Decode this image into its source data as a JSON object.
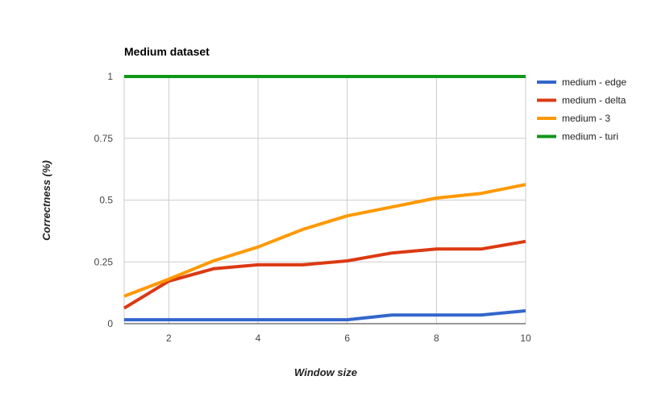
{
  "chart_data": {
    "type": "line",
    "title": "Medium dataset",
    "xlabel": "Window size",
    "ylabel": "Correctness (%)",
    "xlim": [
      1,
      10
    ],
    "ylim": [
      0,
      1
    ],
    "x_ticks": [
      2,
      4,
      6,
      8,
      10
    ],
    "y_ticks": [
      0,
      0.25,
      0.5,
      0.75,
      1
    ],
    "y_tick_labels": [
      "0",
      "0.25",
      "0.5",
      "0.75",
      "1"
    ],
    "grid": true,
    "legend_position": "right",
    "x": [
      1,
      2,
      3,
      4,
      5,
      6,
      7,
      8,
      9,
      10
    ],
    "series": [
      {
        "name": "medium - edge",
        "color": "#3366cc",
        "values": [
          0.016,
          0.016,
          0.016,
          0.016,
          0.016,
          0.016,
          0.035,
          0.035,
          0.035,
          0.052
        ]
      },
      {
        "name": "medium - delta",
        "color": "#dc3912",
        "values": [
          0.063,
          0.172,
          0.222,
          0.238,
          0.238,
          0.254,
          0.286,
          0.302,
          0.302,
          0.333
        ]
      },
      {
        "name": "medium - 3",
        "color": "#ff9900",
        "values": [
          0.111,
          0.18,
          0.254,
          0.31,
          0.381,
          0.436,
          0.472,
          0.508,
          0.527,
          0.563
        ]
      },
      {
        "name": "medium - turi",
        "color": "#109618",
        "values": [
          1,
          1,
          1,
          1,
          1,
          1,
          1,
          1,
          1,
          1
        ]
      }
    ]
  }
}
